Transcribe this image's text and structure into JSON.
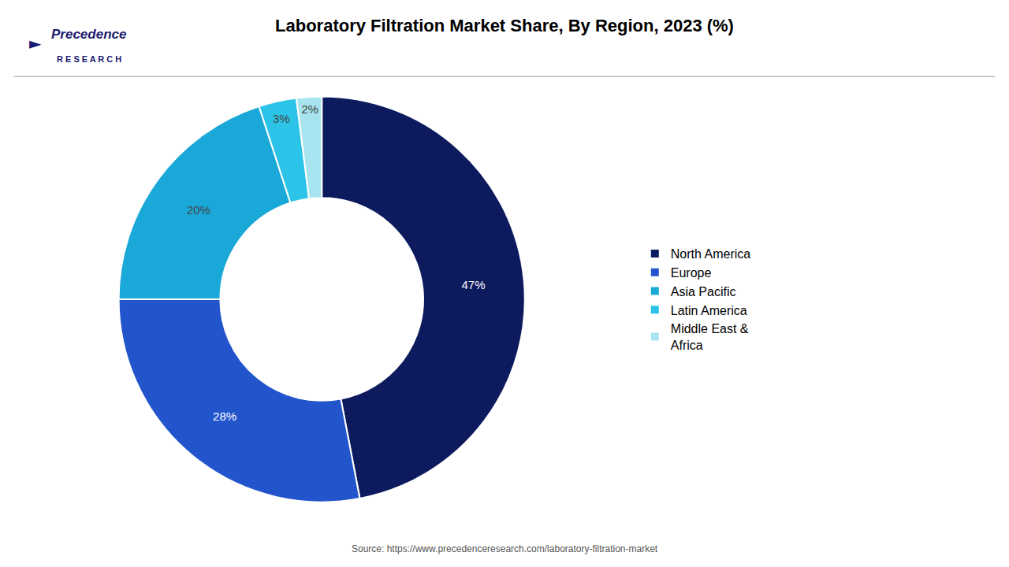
{
  "chart_data": {
    "type": "donut",
    "title": "Laboratory Filtration Market Share, By Region, 2023 (%)",
    "categories": [
      "North America",
      "Europe",
      "Asia Pacific",
      "Latin America",
      "Middle East &\nAfrica"
    ],
    "values": [
      47,
      28,
      20,
      3,
      2
    ],
    "value_labels": [
      "47%",
      "28%",
      "20%",
      "3%",
      "2%"
    ],
    "colors": [
      "#0d1b5e",
      "#2255cc",
      "#1aa8d8",
      "#2bc4e8",
      "#a8e4f0"
    ],
    "data_labels": true,
    "legend": "right",
    "annotations": [
      "Precedence",
      "R E S E A R C H",
      "►",
      "Source: https://www.precedenceresearch.com/laboratory-filtration-market"
    ]
  }
}
